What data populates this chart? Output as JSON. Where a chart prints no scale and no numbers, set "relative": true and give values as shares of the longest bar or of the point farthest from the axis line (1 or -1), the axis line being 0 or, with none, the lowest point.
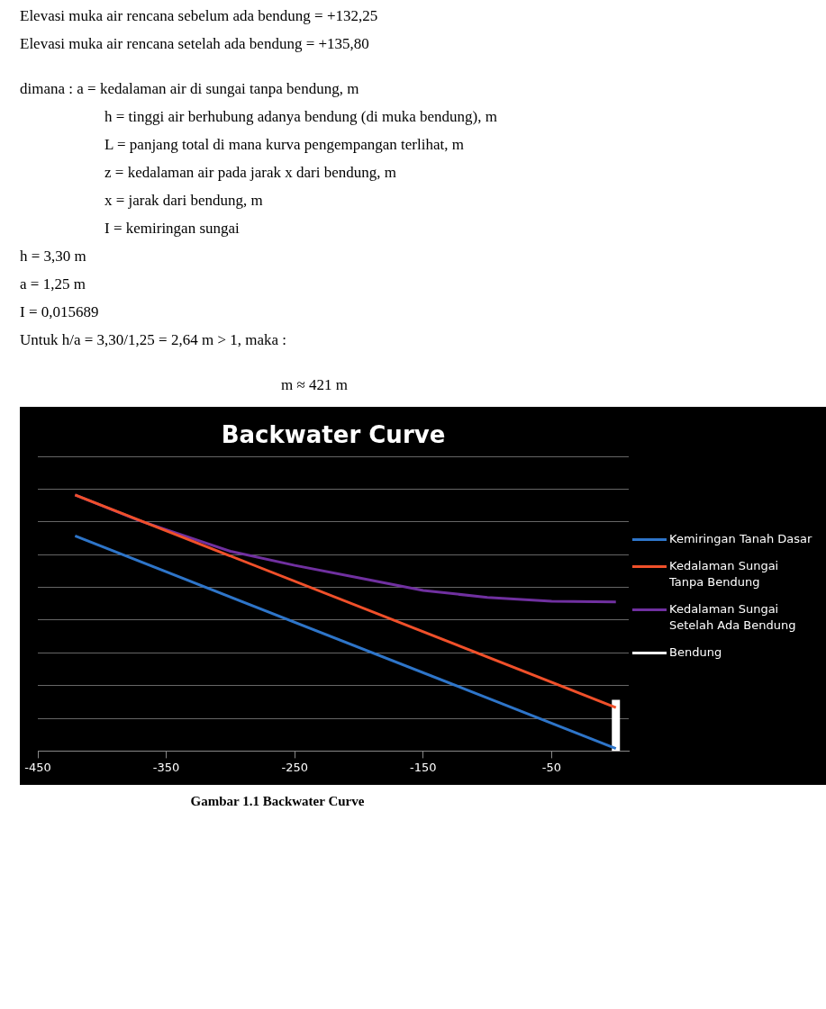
{
  "chart_data": {
    "type": "line",
    "title": "Backwater Curve",
    "relative": true,
    "xlim": [
      -450,
      10
    ],
    "xticks": [
      -450,
      -350,
      -250,
      -150,
      -50
    ],
    "grid": "y",
    "legend": "right",
    "marker": "none",
    "line_style": "solid",
    "series": [
      {
        "name": "Kemiringan Tanah Dasar",
        "color": "#2e75c9",
        "x": [
          -421,
          0
        ],
        "values": [
          0.84,
          0.01
        ]
      },
      {
        "name": "Kedalaman Sungai Tanpa Bendung",
        "color": "#f0502a",
        "x": [
          -421,
          0
        ],
        "values": [
          1,
          0.17
        ]
      },
      {
        "name": "Kedalaman Sungai Setelah Ada Bendung",
        "color": "#7030a0",
        "x": [
          -421,
          -371,
          -300,
          -250,
          -200,
          -150,
          -100,
          -50,
          0
        ],
        "values": [
          1,
          0.9,
          0.78,
          0.725,
          0.676,
          0.627,
          0.6,
          0.585,
          0.582
        ]
      },
      {
        "name": "Bendung",
        "color": "#ffffff",
        "x": [
          0,
          0
        ],
        "values": [
          0,
          0.2
        ]
      }
    ],
    "annotations": [
      "Elevasi muka air rencana sebelum ada  bendung = +132,25",
      "Elevasi muka air rencana setelah ada bendung     = +135,80",
      "dimana :   a = kedalaman air di sungai tanpa bendung, m",
      "h = tinggi air berhubung adanya bendung (di muka bendung), m",
      "L = panjang total di mana kurva pengempangan terlihat,  m",
      "z =  kedalaman air pada jarak x dari bendung, m",
      "x = jarak dari bendung, m",
      "I    = kemiringan sungai",
      "h = 3,30 m",
      "a   =  1,25 m",
      "I    = 0,015689",
      "Untuk h/a = 3,30/1,25 = 2,64 m > 1, maka :",
      "m ≈ 421 m",
      "Gambar 1.1  Backwater Curve"
    ]
  }
}
